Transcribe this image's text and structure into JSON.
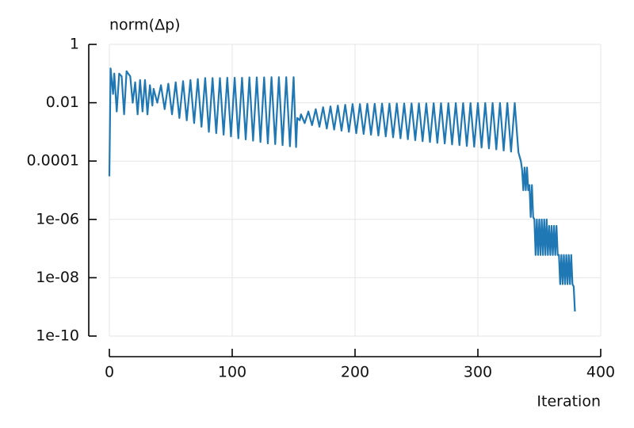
{
  "chart_data": {
    "type": "line",
    "title": "norm(Δp)",
    "x_label": "Iteration",
    "color": "#1f77b4",
    "log_y": true,
    "grid": true,
    "xlim": [
      0,
      400
    ],
    "xticks": [
      0,
      100,
      200,
      300,
      400
    ],
    "ylim": [
      1e-10,
      1
    ],
    "yticks": [
      1,
      0.01,
      0.0001,
      {
        "value": 1e-06,
        "label": "1e-06"
      },
      {
        "value": 1e-08,
        "label": "1e-08"
      },
      {
        "value": 1e-10,
        "label": "1e-10"
      }
    ],
    "x": [
      0,
      1,
      3,
      4,
      6,
      8,
      10,
      12,
      14,
      17,
      19,
      21,
      23,
      25,
      27,
      29,
      31,
      33,
      35,
      36,
      39,
      42,
      45,
      48,
      51,
      54,
      57,
      60,
      63,
      66,
      69,
      72,
      75,
      78,
      81,
      84,
      87,
      90,
      93,
      96,
      99,
      102,
      105,
      108,
      111,
      114,
      117,
      120,
      123,
      126,
      129,
      132,
      135,
      138,
      141,
      144,
      147,
      150,
      152,
      153,
      155,
      156,
      159,
      162,
      165,
      168,
      171,
      174,
      177,
      180,
      183,
      186,
      189,
      192,
      195,
      198,
      201,
      204,
      207,
      210,
      213,
      216,
      219,
      222,
      225,
      228,
      231,
      234,
      237,
      240,
      243,
      246,
      249,
      252,
      255,
      258,
      261,
      264,
      267,
      270,
      273,
      276,
      279,
      282,
      285,
      288,
      291,
      294,
      297,
      300,
      303,
      306,
      309,
      312,
      315,
      318,
      321,
      324,
      327,
      330,
      333,
      335,
      336,
      337,
      338,
      339,
      340,
      341,
      342,
      343,
      344,
      345,
      346,
      347,
      348,
      349,
      350,
      351,
      352,
      353,
      354,
      355,
      356,
      357,
      358,
      359,
      360,
      361,
      362,
      363,
      364,
      365,
      366,
      367,
      368,
      369,
      370,
      371,
      372,
      373,
      374,
      375,
      376,
      377,
      378,
      379
    ],
    "values": [
      3e-05,
      0.15,
      0.02,
      0.1,
      0.005,
      0.1,
      0.08,
      0.004,
      0.12,
      0.08,
      0.01,
      0.05,
      0.004,
      0.06,
      0.005,
      0.06,
      0.004,
      0.04,
      0.008,
      0.03,
      0.01,
      0.04,
      0.006,
      0.045,
      0.004,
      0.05,
      0.003,
      0.055,
      0.0025,
      0.06,
      0.002,
      0.065,
      0.0015,
      0.07,
      0.001,
      0.07,
      0.0009,
      0.07,
      0.0008,
      0.072,
      0.0007,
      0.072,
      0.0006,
      0.072,
      0.00055,
      0.074,
      0.0005,
      0.074,
      0.00045,
      0.074,
      0.0004,
      0.075,
      0.00038,
      0.075,
      0.00035,
      0.075,
      0.00032,
      0.075,
      0.0003,
      0.003,
      0.0025,
      0.004,
      0.002,
      0.005,
      0.0017,
      0.006,
      0.0015,
      0.007,
      0.0013,
      0.0075,
      0.0012,
      0.008,
      0.0011,
      0.0085,
      0.001,
      0.009,
      0.0009,
      0.009,
      0.00085,
      0.0092,
      0.0008,
      0.0092,
      0.00075,
      0.0093,
      0.0007,
      0.0093,
      0.00065,
      0.0094,
      0.0006,
      0.0094,
      0.00056,
      0.0095,
      0.00052,
      0.0095,
      0.00048,
      0.0095,
      0.00045,
      0.0096,
      0.00042,
      0.0096,
      0.0004,
      0.0096,
      0.00037,
      0.0097,
      0.00035,
      0.0097,
      0.00033,
      0.0097,
      0.00031,
      0.0098,
      0.00029,
      0.0098,
      0.00027,
      0.0098,
      0.00025,
      0.0098,
      0.00023,
      0.0098,
      0.00021,
      0.0098,
      0.0002,
      0.0001,
      5e-05,
      1e-05,
      6e-05,
      1e-05,
      6e-05,
      1e-05,
      1.5e-05,
      1.2e-06,
      1.5e-05,
      1.2e-06,
      1e-06,
      6e-08,
      1e-06,
      6e-08,
      1e-06,
      6e-08,
      1e-06,
      6e-08,
      1e-06,
      6e-08,
      1e-06,
      6e-08,
      6e-07,
      6e-08,
      6e-07,
      6e-08,
      6e-07,
      6e-08,
      6e-07,
      6e-08,
      6e-08,
      6e-09,
      6e-08,
      6e-09,
      6e-08,
      6e-09,
      6e-08,
      6e-09,
      6e-08,
      6e-09,
      6e-08,
      6e-09,
      5e-09,
      7e-10
    ]
  }
}
